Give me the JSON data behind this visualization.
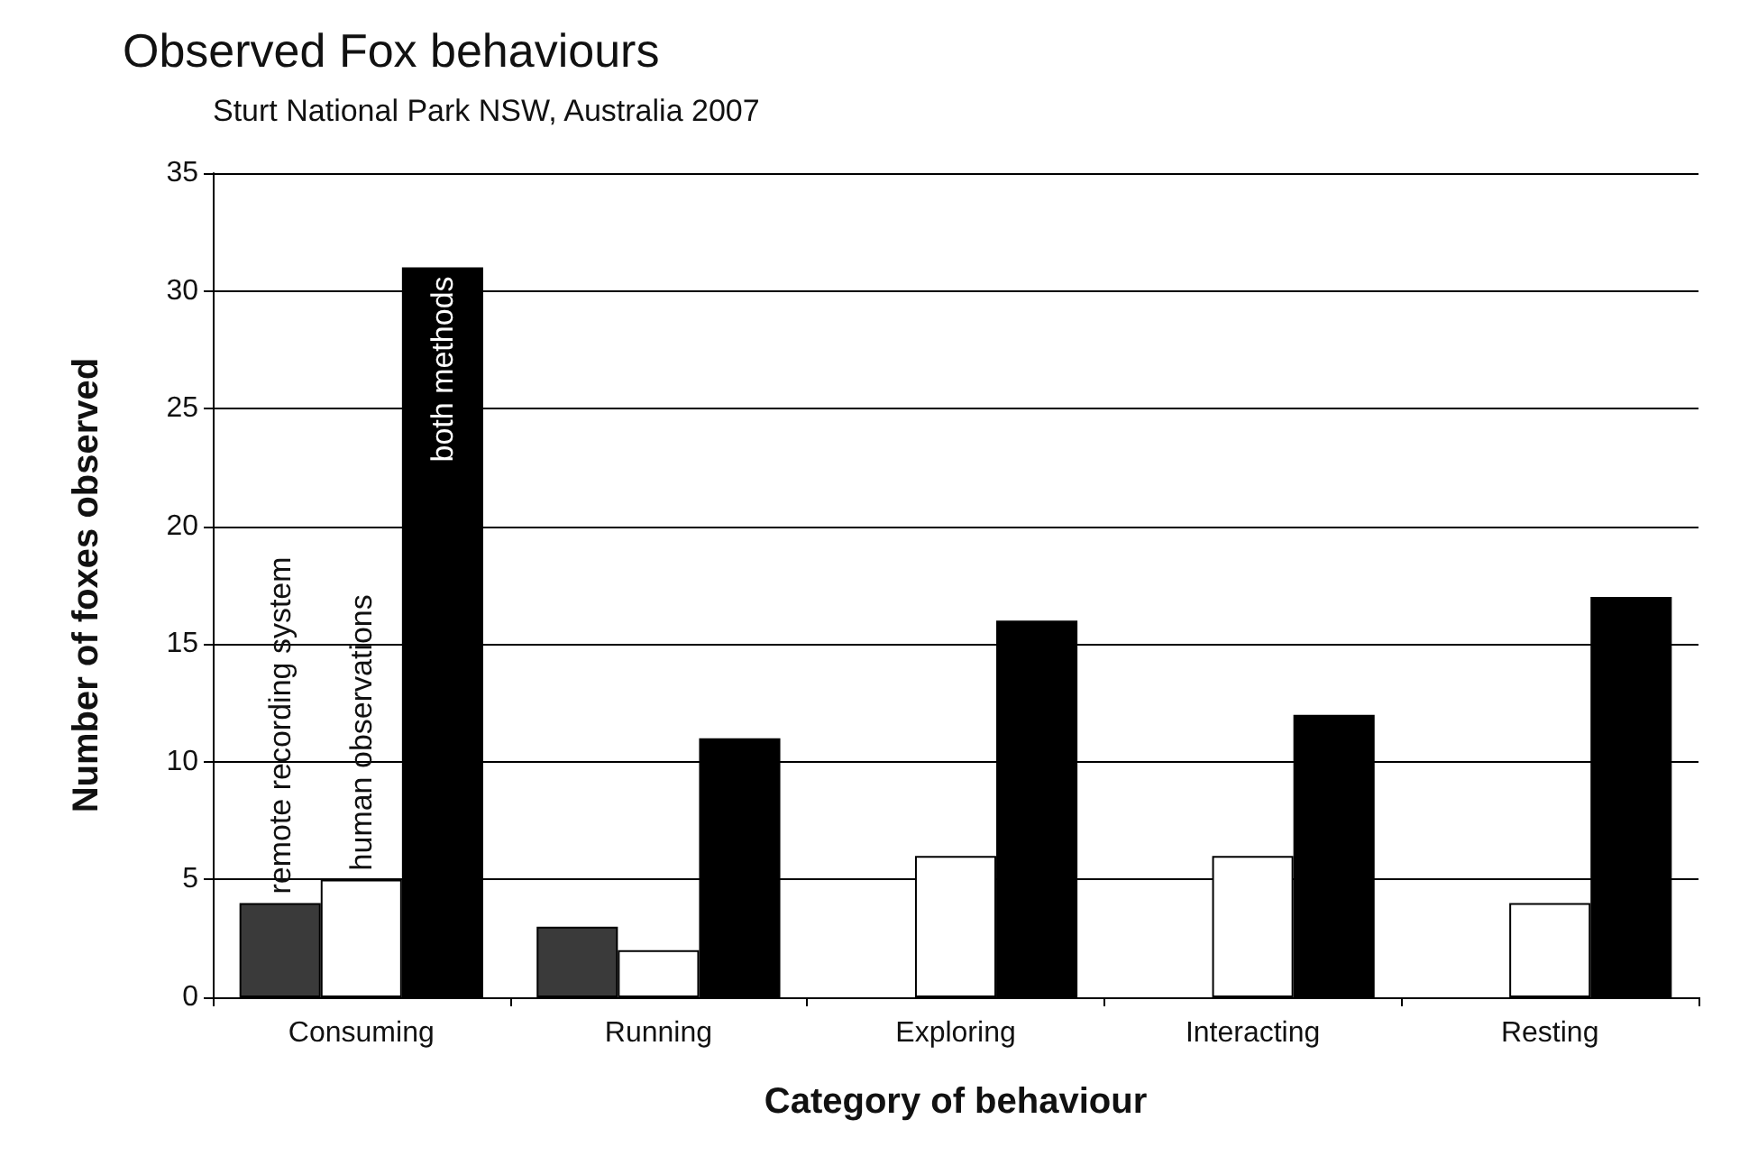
{
  "chart_data": {
    "type": "bar",
    "title": "Observed Fox behaviours",
    "subtitle": "Sturt National Park NSW, Australia 2007",
    "xlabel": "Category of behaviour",
    "ylabel": "Number of foxes observed",
    "categories": [
      "Consuming",
      "Running",
      "Exploring",
      "Interacting",
      "Resting"
    ],
    "series": [
      {
        "name": "remote recording system",
        "color": "#3a3a3a",
        "values": [
          4,
          3,
          null,
          null,
          null
        ]
      },
      {
        "name": "human observations",
        "color": "#ffffff",
        "values": [
          5,
          2,
          6,
          6,
          4
        ]
      },
      {
        "name": "both methods",
        "color": "#000000",
        "values": [
          31,
          11,
          16,
          12,
          17
        ]
      }
    ],
    "ylim": [
      0,
      35
    ],
    "yticks": [
      0,
      5,
      10,
      15,
      20,
      25,
      30,
      35
    ],
    "grid": "y",
    "legend": false
  }
}
